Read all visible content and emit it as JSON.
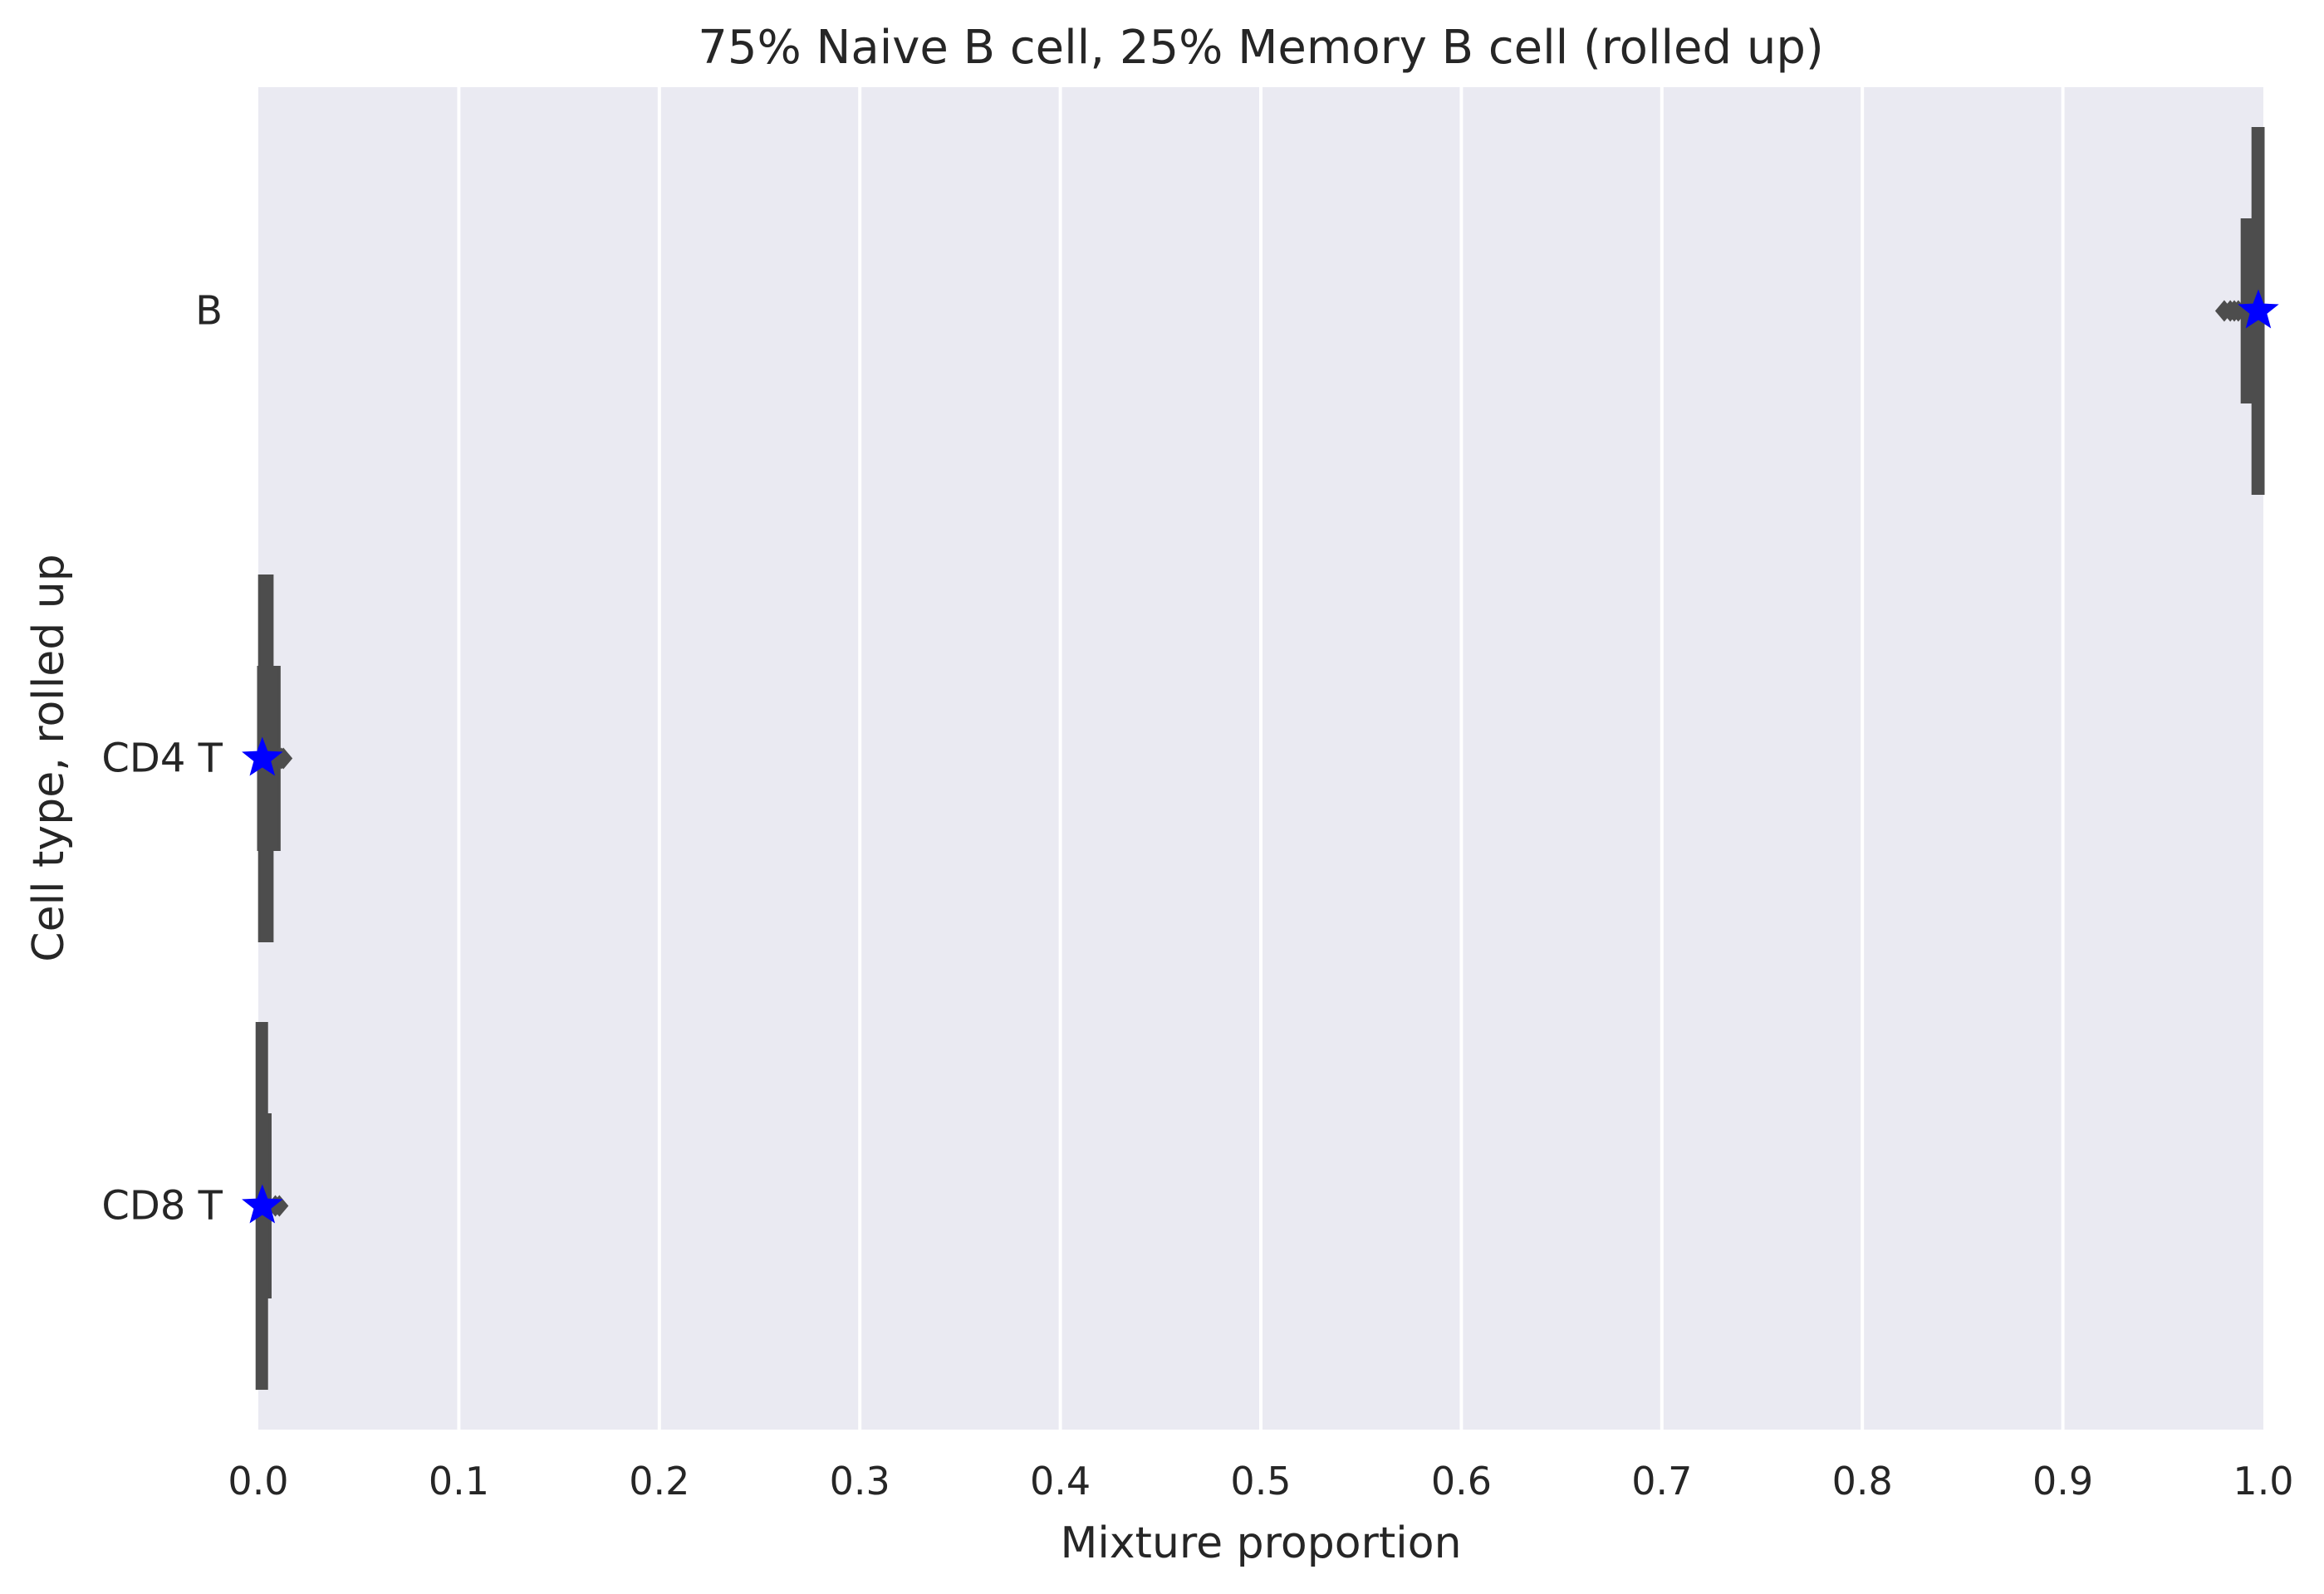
{
  "chart_data": {
    "type": "boxen",
    "orientation": "horizontal",
    "title": "75% Naive B cell, 25% Memory B cell (rolled up)",
    "xlabel": "Mixture proportion",
    "ylabel": "Cell type, rolled up",
    "xlim": [
      0,
      1
    ],
    "x_ticks": [
      "0.0",
      "0.1",
      "0.2",
      "0.3",
      "0.4",
      "0.5",
      "0.6",
      "0.7",
      "0.8",
      "0.9",
      "1.0"
    ],
    "grid": true,
    "categories": [
      "B",
      "CD4 T",
      "CD8 T"
    ],
    "boxes": [
      {
        "category": "B",
        "levels": [
          [
            0.9947,
            1.0
          ],
          [
            0.9893,
            1.0
          ]
        ],
        "outliers": [
          0.9805,
          0.9835,
          0.9855,
          0.9875
        ],
        "star": 0.9975
      },
      {
        "category": "CD4 T",
        "levels": [
          [
            0.0005,
            0.007
          ],
          [
            0.0,
            0.0105
          ]
        ],
        "outliers": [
          0.0115,
          0.0125
        ],
        "star": 0.002
      },
      {
        "category": "CD8 T",
        "levels": [
          [
            0.0,
            0.0035
          ],
          [
            0.0,
            0.006
          ]
        ],
        "outliers": [
          0.0085,
          0.0105
        ],
        "star": 0.002
      }
    ],
    "colors": {
      "background": "#eaeaf2",
      "grid": "#ffffff",
      "box": "#4d4d4d",
      "star": "#0000ff"
    }
  }
}
